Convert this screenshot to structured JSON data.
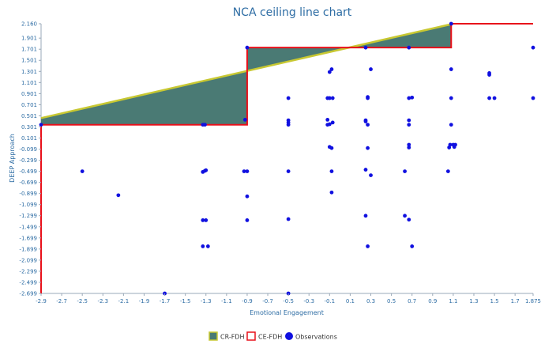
{
  "chart_data": {
    "type": "scatter",
    "title": "NCA ceiling line chart",
    "xlabel": "Emotional Engagement",
    "ylabel": "DEEP Approach",
    "xlim": [
      -2.9,
      1.875
    ],
    "ylim": [
      -2.699,
      2.16
    ],
    "x_ticks": [
      "-2.9",
      "-2.7",
      "-2.5",
      "-2.3",
      "-2.1",
      "-1.9",
      "-1.7",
      "-1.5",
      "-1.3",
      "-1.1",
      "-0.9",
      "-0.7",
      "-0.5",
      "-0.3",
      "-0.1",
      "0.1",
      "0.3",
      "0.5",
      "0.7",
      "0.9",
      "1.1",
      "1.3",
      "1.5",
      "1.7",
      "1.875"
    ],
    "x_tick_values": [
      -2.9,
      -2.7,
      -2.5,
      -2.3,
      -2.1,
      -1.9,
      -1.7,
      -1.5,
      -1.3,
      -1.1,
      -0.9,
      -0.7,
      -0.5,
      -0.3,
      -0.1,
      0.1,
      0.3,
      0.5,
      0.7,
      0.9,
      1.1,
      1.3,
      1.5,
      1.7,
      1.875
    ],
    "y_ticks": [
      "2.160",
      "1.901",
      "1.701",
      "1.501",
      "1.301",
      "1.101",
      "0.901",
      "0.701",
      "0.501",
      "0.301",
      "0.101",
      "-0.099",
      "-0.299",
      "-0.499",
      "-0.699",
      "-0.899",
      "-1.099",
      "-1.299",
      "-1.499",
      "-1.699",
      "-1.899",
      "-2.099",
      "-2.299",
      "-2.499",
      "-2.699"
    ],
    "y_tick_values": [
      2.16,
      1.901,
      1.701,
      1.501,
      1.301,
      1.101,
      0.901,
      0.701,
      0.501,
      0.301,
      0.101,
      -0.099,
      -0.299,
      -0.499,
      -0.699,
      -0.899,
      -1.099,
      -1.299,
      -1.499,
      -1.699,
      -1.899,
      -2.099,
      -2.299,
      -2.499,
      -2.699
    ],
    "legend": {
      "placement": "bottom",
      "items": [
        "CR-FDH",
        "CE-FDH",
        "Observations"
      ]
    },
    "colors": {
      "cr_fdh_line": "#c8c832",
      "cr_fdh_fill": "#4a7a74",
      "ce_fdh_line": "#e8101a",
      "observations": "#1010e0",
      "text": "#2e6da4"
    },
    "cr_fdh_line": [
      [
        -2.9,
        0.46
      ],
      [
        1.1,
        2.16
      ]
    ],
    "ce_fdh_steps": [
      [
        -2.9,
        0.34
      ],
      [
        -0.9,
        0.34
      ],
      [
        -0.9,
        1.73
      ],
      [
        1.08,
        1.73
      ],
      [
        1.08,
        2.16
      ],
      [
        1.875,
        2.16
      ]
    ],
    "points": [
      [
        -2.9,
        0.34
      ],
      [
        -2.5,
        -0.499
      ],
      [
        -2.15,
        -0.93
      ],
      [
        -1.7,
        -2.699
      ],
      [
        -1.33,
        0.34
      ],
      [
        -1.31,
        0.34
      ],
      [
        -1.33,
        -0.51
      ],
      [
        -1.31,
        -0.49
      ],
      [
        -1.3,
        -0.48
      ],
      [
        -1.33,
        -1.38
      ],
      [
        -1.3,
        -1.38
      ],
      [
        -1.33,
        -1.85
      ],
      [
        -1.28,
        -1.85
      ],
      [
        -0.92,
        0.43
      ],
      [
        -0.9,
        1.73
      ],
      [
        -0.93,
        -0.499
      ],
      [
        -0.9,
        -0.499
      ],
      [
        -0.9,
        -0.95
      ],
      [
        -0.9,
        -1.38
      ],
      [
        -0.5,
        0.82
      ],
      [
        -0.5,
        0.42
      ],
      [
        -0.5,
        0.38
      ],
      [
        -0.5,
        0.34
      ],
      [
        -0.5,
        -0.499
      ],
      [
        -0.5,
        -1.36
      ],
      [
        -0.5,
        -2.699
      ],
      [
        -0.1,
        1.29
      ],
      [
        -0.08,
        1.34
      ],
      [
        -0.12,
        0.82
      ],
      [
        -0.1,
        0.82
      ],
      [
        -0.07,
        0.82
      ],
      [
        -0.12,
        0.43
      ],
      [
        -0.12,
        0.34
      ],
      [
        -0.1,
        0.35
      ],
      [
        -0.07,
        0.38
      ],
      [
        -0.1,
        -0.06
      ],
      [
        -0.08,
        -0.08
      ],
      [
        -0.08,
        -0.499
      ],
      [
        -0.08,
        -0.88
      ],
      [
        0.25,
        1.73
      ],
      [
        0.3,
        1.34
      ],
      [
        0.27,
        0.84
      ],
      [
        0.27,
        0.82
      ],
      [
        0.25,
        0.42
      ],
      [
        0.25,
        0.4
      ],
      [
        0.27,
        0.34
      ],
      [
        0.27,
        -0.08
      ],
      [
        0.25,
        -0.47
      ],
      [
        0.3,
        -0.57
      ],
      [
        0.25,
        -1.3
      ],
      [
        0.27,
        -1.85
      ],
      [
        0.63,
        -0.499
      ],
      [
        0.63,
        -1.3
      ],
      [
        0.67,
        -1.37
      ],
      [
        0.67,
        1.73
      ],
      [
        0.67,
        0.82
      ],
      [
        0.7,
        0.83
      ],
      [
        0.67,
        0.42
      ],
      [
        0.67,
        0.34
      ],
      [
        0.67,
        -0.02
      ],
      [
        0.67,
        -0.07
      ],
      [
        0.7,
        -1.85
      ],
      [
        1.05,
        -0.499
      ],
      [
        1.08,
        2.16
      ],
      [
        1.08,
        1.34
      ],
      [
        1.08,
        0.82
      ],
      [
        1.08,
        0.34
      ],
      [
        1.07,
        -0.02
      ],
      [
        1.1,
        -0.02
      ],
      [
        1.12,
        -0.02
      ],
      [
        1.06,
        -0.07
      ],
      [
        1.11,
        -0.06
      ],
      [
        1.45,
        1.27
      ],
      [
        1.45,
        1.24
      ],
      [
        1.45,
        0.82
      ],
      [
        1.5,
        0.82
      ],
      [
        1.875,
        1.73
      ],
      [
        1.875,
        0.82
      ]
    ]
  }
}
